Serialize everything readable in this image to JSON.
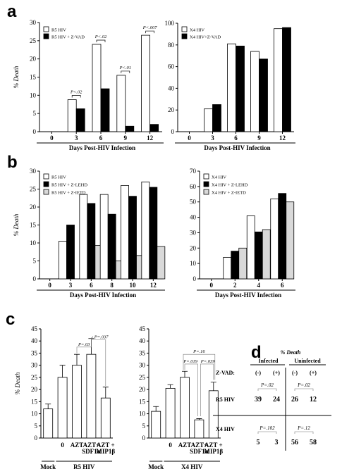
{
  "panels": {
    "a": "a",
    "b": "b",
    "c": "c",
    "d": "d"
  },
  "chart_data": [
    {
      "id": "a-left",
      "type": "bar",
      "ylabel": "% Death",
      "xlabel": "Days Post-HIV Infection",
      "ylim": [
        0,
        30
      ],
      "yticks": [
        0,
        5,
        10,
        15,
        20,
        25,
        30
      ],
      "categories": [
        "0",
        "3",
        "6",
        "9",
        "12"
      ],
      "series": [
        {
          "name": "R5 HIV",
          "color": "#ffffff",
          "values": [
            0,
            8.8,
            24,
            15.5,
            26.5
          ]
        },
        {
          "name": "R5 HIV + Z-VAD",
          "color": "#000000",
          "values": [
            0,
            6.3,
            11.8,
            1.5,
            2
          ]
        }
      ],
      "annotations": [
        {
          "text": "P<.02",
          "category": 1
        },
        {
          "text": "P<.02",
          "category": 2
        },
        {
          "text": "P<.01",
          "category": 3
        },
        {
          "text": "P<.007",
          "category": 4
        }
      ]
    },
    {
      "id": "a-right",
      "type": "bar",
      "xlabel": "Days Post-HIV Infection",
      "ylim": [
        0,
        100
      ],
      "yticks": [
        0,
        20,
        40,
        60,
        80,
        100
      ],
      "categories": [
        "0",
        "3",
        "6",
        "9",
        "12"
      ],
      "series": [
        {
          "name": "X4 HIV",
          "color": "#ffffff",
          "values": [
            0,
            21,
            81,
            74,
            95
          ]
        },
        {
          "name": "X4 HIV+Z-VAD",
          "color": "#000000",
          "values": [
            0,
            25,
            79,
            67,
            96
          ]
        }
      ]
    },
    {
      "id": "b-left",
      "type": "bar",
      "ylabel": "% Death",
      "xlabel": "Days Post-HIV Infection",
      "ylim": [
        0,
        30
      ],
      "yticks": [
        0,
        5,
        10,
        15,
        20,
        25,
        30
      ],
      "categories": [
        "0",
        "3",
        "6",
        "8",
        "10",
        "12"
      ],
      "series": [
        {
          "name": "R5 HIV",
          "color": "#ffffff",
          "values": [
            0,
            10.5,
            23.5,
            23.5,
            26,
            27
          ]
        },
        {
          "name": "R5 HIV + Z-LEHD",
          "color": "#000000",
          "values": [
            0,
            15,
            21,
            18,
            23,
            25.5
          ]
        },
        {
          "name": "R5 HIV + Z-IETD",
          "color": "#d9d9d9",
          "values": [
            0,
            0,
            9.3,
            5,
            6.5,
            9
          ]
        }
      ]
    },
    {
      "id": "b-right",
      "type": "bar",
      "xlabel": "Days Post-HIV Infection",
      "ylim": [
        0,
        70
      ],
      "yticks": [
        0,
        10,
        20,
        30,
        40,
        50,
        60,
        70
      ],
      "categories": [
        "0",
        "2",
        "4",
        "6"
      ],
      "series": [
        {
          "name": "X4 HIV",
          "color": "#ffffff",
          "values": [
            0,
            14,
            41,
            52
          ]
        },
        {
          "name": "X4 HIV + Z-LEHD",
          "color": "#000000",
          "values": [
            0,
            18,
            30.5,
            55.5
          ]
        },
        {
          "name": "X4 HIV + Z-IETD",
          "color": "#d9d9d9",
          "values": [
            0,
            20,
            32,
            50
          ]
        }
      ]
    },
    {
      "id": "c-left",
      "type": "bar",
      "ylabel": "% Death",
      "ylim": [
        0,
        45
      ],
      "yticks": [
        0,
        5,
        10,
        15,
        20,
        25,
        30,
        35,
        40,
        45
      ],
      "categories": [
        "",
        "0",
        "AZT",
        "AZT+ SDF1α",
        "AZT + MIP1β"
      ],
      "values": [
        12,
        25,
        30,
        34.5,
        16.5
      ],
      "errors": [
        2,
        5,
        4.5,
        6.5,
        4.5
      ],
      "group_labels": [
        {
          "text": "Mock",
          "from": 0,
          "to": 0
        },
        {
          "text": "R5 HIV",
          "from": 1,
          "to": 4
        }
      ],
      "annotations": [
        {
          "text": "P=.03",
          "from": 2,
          "to": 3
        },
        {
          "text": "P=.037",
          "from": 3,
          "to": 4
        }
      ]
    },
    {
      "id": "c-right",
      "type": "bar",
      "ylim": [
        0,
        45
      ],
      "yticks": [
        0,
        5,
        10,
        15,
        20,
        25,
        30,
        35,
        40,
        45
      ],
      "categories": [
        "",
        "0",
        "AZT",
        "AZT+ SDF1α",
        "AZT + MIP1β"
      ],
      "values": [
        11,
        20.5,
        25,
        7.5,
        19.5
      ],
      "errors": [
        2,
        1.5,
        2.5,
        0.5,
        3.5
      ],
      "group_labels": [
        {
          "text": "Mock",
          "from": 0,
          "to": 0
        },
        {
          "text": "X4 HIV",
          "from": 1,
          "to": 4
        }
      ],
      "annotations": [
        {
          "text": "P=.019",
          "from": 2,
          "to": 3
        },
        {
          "text": "P=.039",
          "from": 3,
          "to": 4
        },
        {
          "text": "P=.16",
          "from": 2,
          "to": 4
        }
      ]
    },
    {
      "id": "d-table",
      "type": "table",
      "title": "% Death",
      "groups": [
        "Infected",
        "Uninfected"
      ],
      "zvad_label": "Z-VAD:",
      "zvad": [
        "(-)",
        "(+)",
        "(-)",
        "(+)"
      ],
      "rows": [
        {
          "label": "R5 HIV",
          "values": [
            39,
            24,
            26,
            12
          ],
          "p": [
            "P=.02",
            "P=.02"
          ]
        },
        {
          "label": "X4 HIV",
          "values": [
            5,
            3,
            56,
            58
          ],
          "p": [
            "P=.102",
            "P=.12"
          ]
        }
      ]
    }
  ]
}
